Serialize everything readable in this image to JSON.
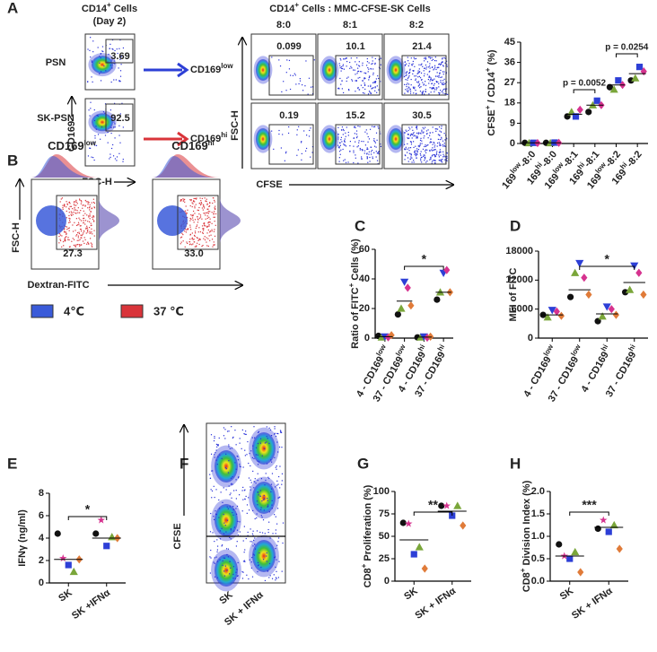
{
  "panel_labels": [
    "A",
    "B",
    "C",
    "D",
    "E",
    "F",
    "G",
    "H"
  ],
  "flow": {
    "a_left": {
      "title": [
        "CD14",
        "+",
        " Cells"
      ],
      "subtitle": "(Day 2)",
      "rows": [
        "PSN",
        "SK-PSN"
      ],
      "gates": [
        "3.69",
        "92.5"
      ],
      "y_label": "CD169",
      "x_label": "FSC-H",
      "outcomes": [
        [
          "CD169",
          "low"
        ],
        [
          "CD169",
          "hi"
        ]
      ]
    },
    "a_mid": {
      "title": [
        "CD14",
        "+",
        " Cells : MMC-CFSE-SK Cells"
      ],
      "columns": [
        "8:0",
        "8:1",
        "8:2"
      ],
      "gates": [
        [
          "0.099",
          "10.1",
          "21.4"
        ],
        [
          "0.19",
          "15.2",
          "30.5"
        ]
      ],
      "y_label": "FSC-H",
      "x_label": "CFSE"
    },
    "b": {
      "columns": [
        [
          "CD169",
          "low"
        ],
        [
          "CD169",
          "hi"
        ]
      ],
      "gates": [
        "27.3",
        "33.0"
      ],
      "y_label": "FSC-H",
      "x_label": "Dextran-FITC",
      "legend": [
        {
          "label": "4℃",
          "color": "#3a5bd9"
        },
        {
          "label": "37 ℃",
          "color": "#d9343a"
        }
      ]
    },
    "f": {
      "columns": [
        "SK",
        "SK + IFNα"
      ],
      "y_label": "CFSE"
    }
  },
  "chart_data": [
    {
      "type": "dotplot",
      "ylabel": [
        "CFSE",
        "+",
        " / CD14",
        "+",
        " (%)"
      ],
      "categories": [
        [
          "169",
          "low",
          "-8:0"
        ],
        [
          "169",
          "hi",
          "-8:0"
        ],
        [
          "169",
          "low",
          "-8:1"
        ],
        [
          "169",
          "hi",
          "-8:1"
        ],
        [
          "169",
          "low",
          "-8:2"
        ],
        [
          "169",
          "hi",
          "-8:2"
        ]
      ],
      "ylim": [
        0,
        45
      ],
      "yticks": [
        0,
        9,
        18,
        27,
        36,
        45
      ],
      "series": [
        {
          "color": "#111111",
          "marker": "circle",
          "values": [
            0.3,
            0.3,
            12,
            14,
            25,
            28
          ]
        },
        {
          "color": "#7aa63a",
          "marker": "triangle",
          "values": [
            0.2,
            0.2,
            14,
            17,
            24,
            29
          ]
        },
        {
          "color": "#2d3fd6",
          "marker": "square",
          "values": [
            0.3,
            0.4,
            12,
            19,
            28,
            34
          ]
        },
        {
          "color": "#d6338f",
          "marker": "diamond",
          "values": [
            0.2,
            0.3,
            15,
            17,
            26,
            32
          ]
        }
      ],
      "means": [
        0.3,
        0.3,
        13,
        17,
        26,
        31
      ],
      "annotations": [
        "p = 0.0052",
        "p = 0.0254"
      ]
    },
    {
      "type": "dotplot",
      "ylabel": [
        "Ratio of FITC",
        "+",
        " Cells (%)"
      ],
      "categories": [
        [
          "4 - CD169",
          "low"
        ],
        [
          "37 - CD169",
          "low"
        ],
        [
          "4 - CD169",
          "hi"
        ],
        [
          "37 - CD169",
          "hi"
        ]
      ],
      "ylim": [
        0,
        60
      ],
      "yticks": [
        0,
        20,
        40,
        60
      ],
      "series": [
        {
          "color": "#111111",
          "marker": "circle",
          "values": [
            1.5,
            16,
            0.5,
            26
          ]
        },
        {
          "color": "#7aa63a",
          "marker": "triangle",
          "values": [
            0.5,
            20,
            0.5,
            31
          ]
        },
        {
          "color": "#2d3fd6",
          "marker": "triangle-down",
          "values": [
            1,
            38,
            1,
            44
          ]
        },
        {
          "color": "#d6338f",
          "marker": "diamond",
          "values": [
            0.5,
            34,
            0.3,
            46
          ]
        },
        {
          "color": "#e07b39",
          "marker": "diamond",
          "values": [
            2,
            22,
            1,
            31
          ]
        }
      ],
      "means": [
        1,
        25,
        0.7,
        31
      ],
      "annotations": [
        "*"
      ]
    },
    {
      "type": "dotplot",
      "ylabel": [
        "MFI of FITC"
      ],
      "categories": [
        [
          "4 - CD169",
          "low"
        ],
        [
          "37 - CD169",
          "low"
        ],
        [
          "4 - CD169",
          "hi"
        ],
        [
          "37 - CD169",
          "hi"
        ]
      ],
      "ylim": [
        0,
        18000
      ],
      "yticks": [
        0,
        6000,
        12000,
        18000
      ],
      "series": [
        {
          "color": "#111111",
          "marker": "circle",
          "values": [
            4800,
            8500,
            3500,
            9500
          ]
        },
        {
          "color": "#7aa63a",
          "marker": "triangle",
          "values": [
            4300,
            13500,
            4500,
            10000
          ]
        },
        {
          "color": "#2d3fd6",
          "marker": "triangle-down",
          "values": [
            5800,
            15500,
            6500,
            15000
          ]
        },
        {
          "color": "#d6338f",
          "marker": "diamond",
          "values": [
            5500,
            12500,
            6000,
            13500
          ]
        },
        {
          "color": "#e07b39",
          "marker": "diamond",
          "values": [
            4600,
            9000,
            4800,
            9000
          ]
        }
      ],
      "means": [
        4800,
        10000,
        5000,
        11500
      ],
      "annotations": [
        "*"
      ]
    },
    {
      "type": "dotplot",
      "ylabel": [
        "IFNγ (ng/ml)"
      ],
      "categories": [
        "SK",
        "SK +IFNα"
      ],
      "ylim": [
        0,
        8
      ],
      "yticks": [
        0,
        2,
        4,
        6,
        8
      ],
      "series": [
        {
          "color": "#111111",
          "marker": "circle",
          "values": [
            4.4,
            4.4
          ]
        },
        {
          "color": "#d6338f",
          "marker": "star",
          "values": [
            2.2,
            5.6
          ]
        },
        {
          "color": "#2d3fd6",
          "marker": "square",
          "values": [
            1.6,
            3.3
          ]
        },
        {
          "color": "#7aa63a",
          "marker": "triangle",
          "values": [
            1.0,
            4.1
          ]
        },
        {
          "color": "#e07b39",
          "marker": "diamond",
          "values": [
            2.1,
            4.0
          ]
        }
      ],
      "means": [
        2.1,
        4.0
      ],
      "annotations": [
        "*"
      ]
    },
    {
      "type": "dotplot",
      "ylabel": [
        "CD8",
        "+",
        " Proliferation (%)"
      ],
      "categories": [
        "SK",
        "SK + IFNα"
      ],
      "ylim": [
        0,
        100
      ],
      "yticks": [
        0,
        25,
        50,
        75,
        100
      ],
      "series": [
        {
          "color": "#111111",
          "marker": "circle",
          "values": [
            65,
            84
          ]
        },
        {
          "color": "#d6338f",
          "marker": "star",
          "values": [
            64,
            84
          ]
        },
        {
          "color": "#2d3fd6",
          "marker": "square",
          "values": [
            30,
            73
          ]
        },
        {
          "color": "#7aa63a",
          "marker": "triangle",
          "values": [
            38,
            84
          ]
        },
        {
          "color": "#e07b39",
          "marker": "diamond",
          "values": [
            14,
            62
          ]
        }
      ],
      "means": [
        46,
        78
      ],
      "annotations": [
        "**"
      ]
    },
    {
      "type": "dotplot",
      "ylabel": [
        "CD8",
        "+",
        " Division Index (%)"
      ],
      "categories": [
        "SK",
        "SK + IFNα"
      ],
      "ylim": [
        0,
        2
      ],
      "yticks": [
        {
          "value": 0,
          "label": "0.0"
        },
        0.5,
        {
          "value": 1,
          "label": "1.0"
        },
        1.5,
        {
          "value": 2,
          "label": "2.0"
        }
      ],
      "series": [
        {
          "color": "#111111",
          "marker": "circle",
          "values": [
            0.82,
            1.17
          ]
        },
        {
          "color": "#d6338f",
          "marker": "star",
          "values": [
            0.56,
            1.36
          ]
        },
        {
          "color": "#2d3fd6",
          "marker": "square",
          "values": [
            0.5,
            1.1
          ]
        },
        {
          "color": "#7aa63a",
          "marker": "triangle",
          "values": [
            0.65,
            1.25
          ]
        },
        {
          "color": "#e07b39",
          "marker": "diamond",
          "values": [
            0.2,
            0.72
          ]
        }
      ],
      "means": [
        0.56,
        1.2
      ],
      "annotations": [
        "***"
      ]
    }
  ]
}
